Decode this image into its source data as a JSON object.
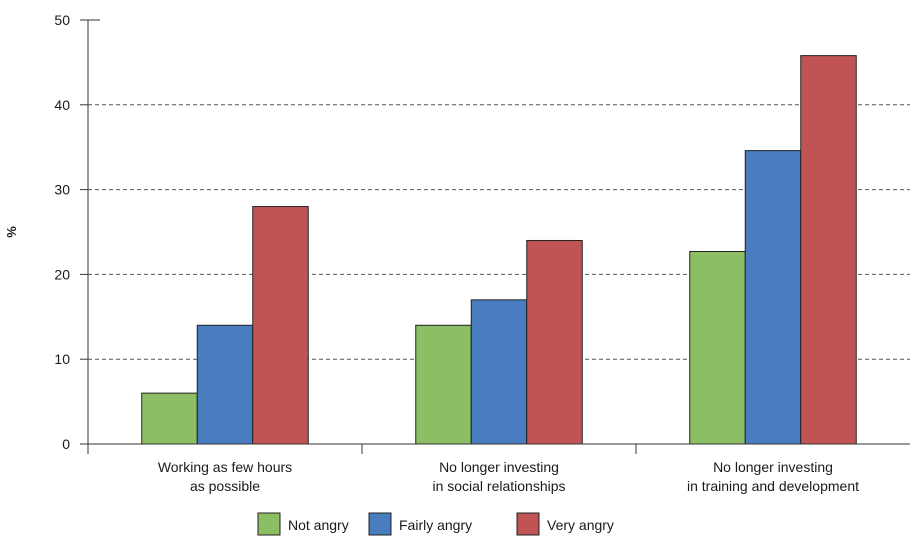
{
  "chart_data": {
    "type": "bar",
    "title": "",
    "xlabel": "",
    "ylabel": "%",
    "ylim": [
      0,
      50
    ],
    "yticks": [
      0,
      10,
      20,
      30,
      40,
      50
    ],
    "grid": "horizontal dashed",
    "legend_position": "bottom",
    "categories": [
      [
        "Working as few hours",
        "as possible"
      ],
      [
        "No longer investing",
        "in social relationships"
      ],
      [
        "No longer investing",
        "in training and development"
      ]
    ],
    "series": [
      {
        "name": "Not angry",
        "color": "#8cbf65",
        "values": [
          6,
          14,
          22.7
        ]
      },
      {
        "name": "Fairly angry",
        "color": "#4a7cc0",
        "values": [
          14,
          17,
          34.6
        ]
      },
      {
        "name": "Very angry",
        "color": "#c05454",
        "values": [
          28,
          24,
          45.8
        ]
      }
    ]
  }
}
